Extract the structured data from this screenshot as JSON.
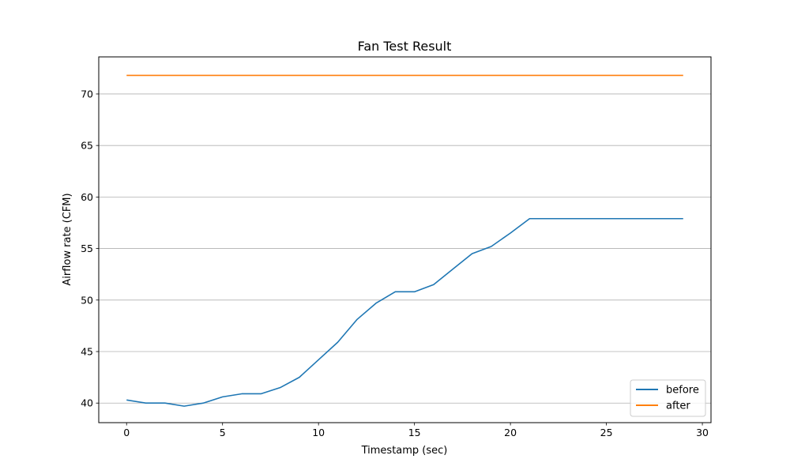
{
  "chart_data": {
    "type": "line",
    "title": "Fan Test Result",
    "xlabel": "Timestamp (sec)",
    "ylabel": "Airflow rate (CFM)",
    "xlim": [
      -1.45,
      30.45
    ],
    "ylim": [
      38.1,
      73.6
    ],
    "xticks": [
      0,
      5,
      10,
      15,
      20,
      25,
      30
    ],
    "yticks": [
      40,
      45,
      50,
      55,
      60,
      65,
      70
    ],
    "grid": "horizontal",
    "legend_position": "bottom-right",
    "x": [
      0,
      1,
      2,
      3,
      4,
      5,
      6,
      7,
      8,
      9,
      10,
      11,
      12,
      13,
      14,
      15,
      16,
      17,
      18,
      19,
      20,
      21,
      22,
      23,
      24,
      25,
      26,
      27,
      28,
      29
    ],
    "series": [
      {
        "name": "before",
        "color": "#1f77b4",
        "values": [
          40.3,
          40.0,
          40.0,
          39.7,
          40.0,
          40.6,
          40.9,
          40.9,
          41.5,
          42.5,
          44.2,
          45.9,
          48.1,
          49.7,
          50.8,
          50.8,
          51.5,
          53.0,
          54.5,
          55.2,
          56.5,
          57.9,
          57.9,
          57.9,
          57.9,
          57.9,
          57.9,
          57.9,
          57.9,
          57.9
        ]
      },
      {
        "name": "after",
        "color": "#ff7f0e",
        "values": [
          71.8,
          71.8,
          71.8,
          71.8,
          71.8,
          71.8,
          71.8,
          71.8,
          71.8,
          71.8,
          71.8,
          71.8,
          71.8,
          71.8,
          71.8,
          71.8,
          71.8,
          71.8,
          71.8,
          71.8,
          71.8,
          71.8,
          71.8,
          71.8,
          71.8,
          71.8,
          71.8,
          71.8,
          71.8,
          71.8
        ]
      }
    ]
  }
}
